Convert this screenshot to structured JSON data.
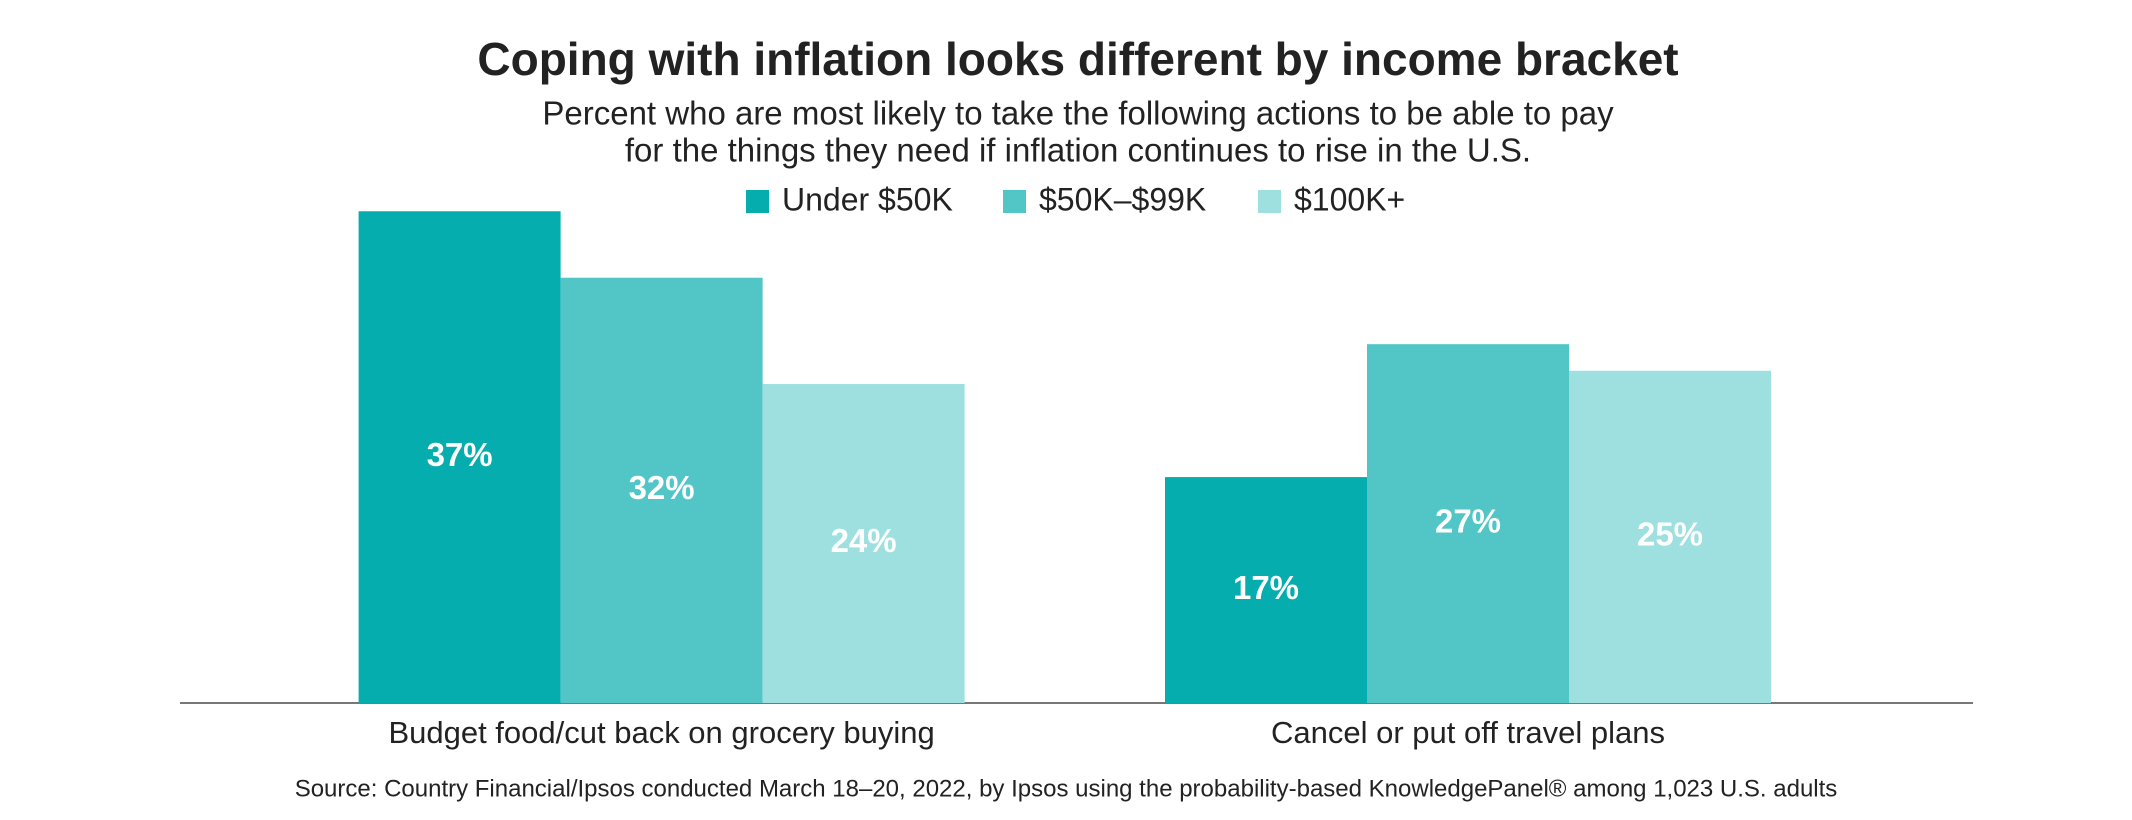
{
  "chart_data": {
    "type": "bar",
    "title": "Coping with inflation looks different by income bracket",
    "subtitle": [
      "Percent who are most likely to take the following actions to be able to pay",
      "for the things they need if inflation continues to rise in the U.S."
    ],
    "categories": [
      "Budget food/cut back on grocery buying",
      "Cancel or put off travel plans"
    ],
    "series": [
      {
        "name": "Under $50K",
        "color": "#05adae",
        "values": [
          37,
          17
        ],
        "value_labels": [
          "37%",
          "17%"
        ]
      },
      {
        "name": "$50K–$99K",
        "color": "#52c6c7",
        "values": [
          32,
          27
        ],
        "value_labels": [
          "32%",
          "27%"
        ]
      },
      {
        "name": "$100K+",
        "color": "#9ee0e0",
        "values": [
          24,
          25
        ],
        "value_labels": [
          "24%",
          "25%"
        ]
      }
    ],
    "source": "Source: Country Financial/Ipsos conducted March 18–20, 2022, by Ipsos using the probability-based KnowledgePanel® among 1,023 U.S. adults"
  }
}
